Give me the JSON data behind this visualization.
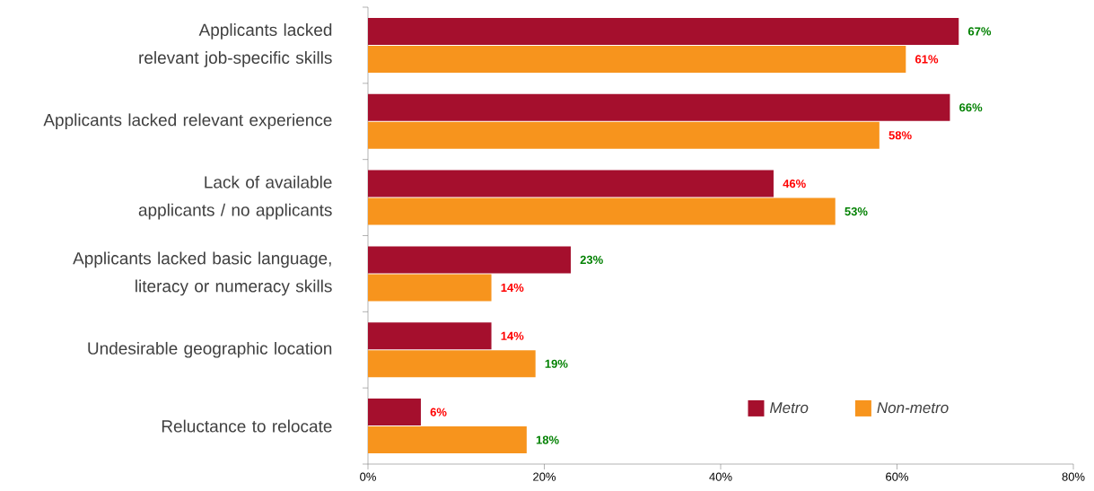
{
  "chart_data": {
    "type": "bar",
    "orientation": "horizontal",
    "categories": [
      "Applicants lacked relevant job-specific skills",
      "Applicants lacked relevant experience",
      "Lack of available applicants / no applicants",
      "Applicants lacked basic language, literacy or numeracy skills",
      "Undesirable geographic location",
      "Reluctance to relocate"
    ],
    "series": [
      {
        "name": "Metro",
        "color": "#a50f2d",
        "values": [
          67,
          66,
          46,
          23,
          14,
          6
        ],
        "value_labels": [
          "67%",
          "66%",
          "46%",
          "23%",
          "14%",
          "6%"
        ]
      },
      {
        "name": "Non-metro",
        "color": "#f7941d",
        "values": [
          61,
          58,
          53,
          14,
          19,
          18
        ],
        "value_labels": [
          "61%",
          "58%",
          "53%",
          "14%",
          "19%",
          "18%"
        ]
      }
    ],
    "xlim": [
      0,
      80
    ],
    "xticks": [
      {
        "value": 0,
        "label": "0%"
      },
      {
        "value": 20,
        "label": "20%"
      },
      {
        "value": 40,
        "label": "40%"
      },
      {
        "value": 60,
        "label": "60%"
      },
      {
        "value": 80,
        "label": "80%"
      }
    ],
    "legend": "bottom right"
  }
}
